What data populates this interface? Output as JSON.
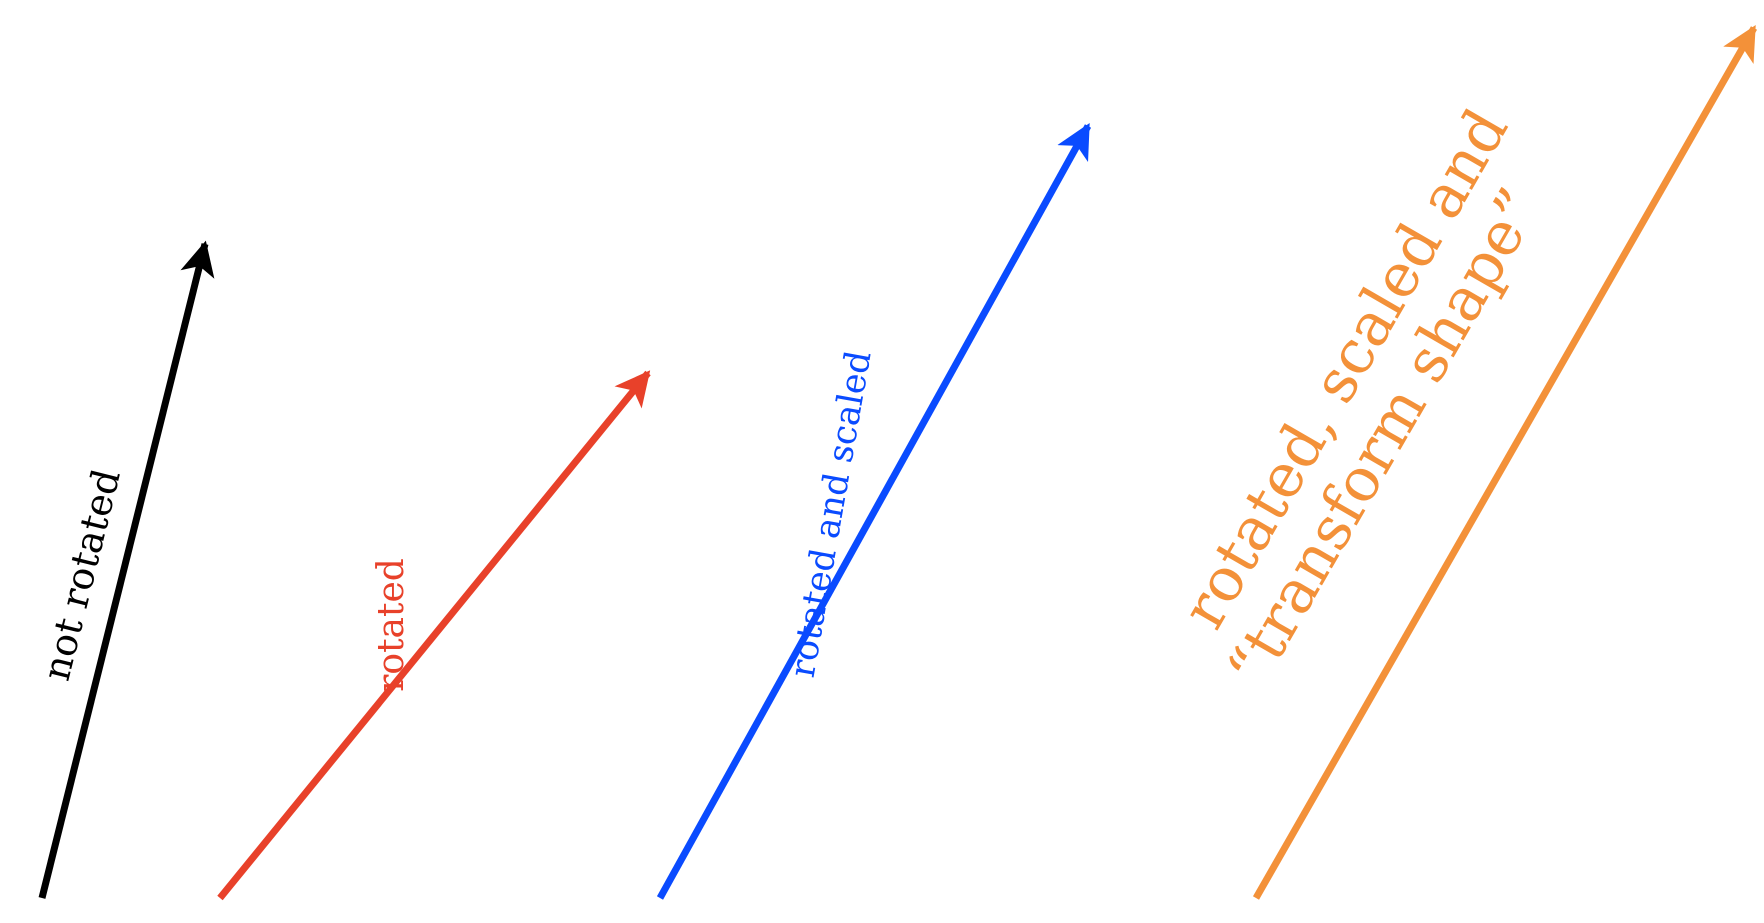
{
  "diagram": {
    "arrows": [
      {
        "id": "black",
        "label": "not rotated",
        "color": "#000000"
      },
      {
        "id": "red",
        "label": "rotated",
        "color": "#e8412a"
      },
      {
        "id": "blue",
        "label": "rotated and scaled",
        "color": "#0a4bff"
      },
      {
        "id": "orange",
        "label_line1": "rotated, scaled and",
        "label_line2": "“transform shape”",
        "color": "#f39139"
      }
    ]
  }
}
